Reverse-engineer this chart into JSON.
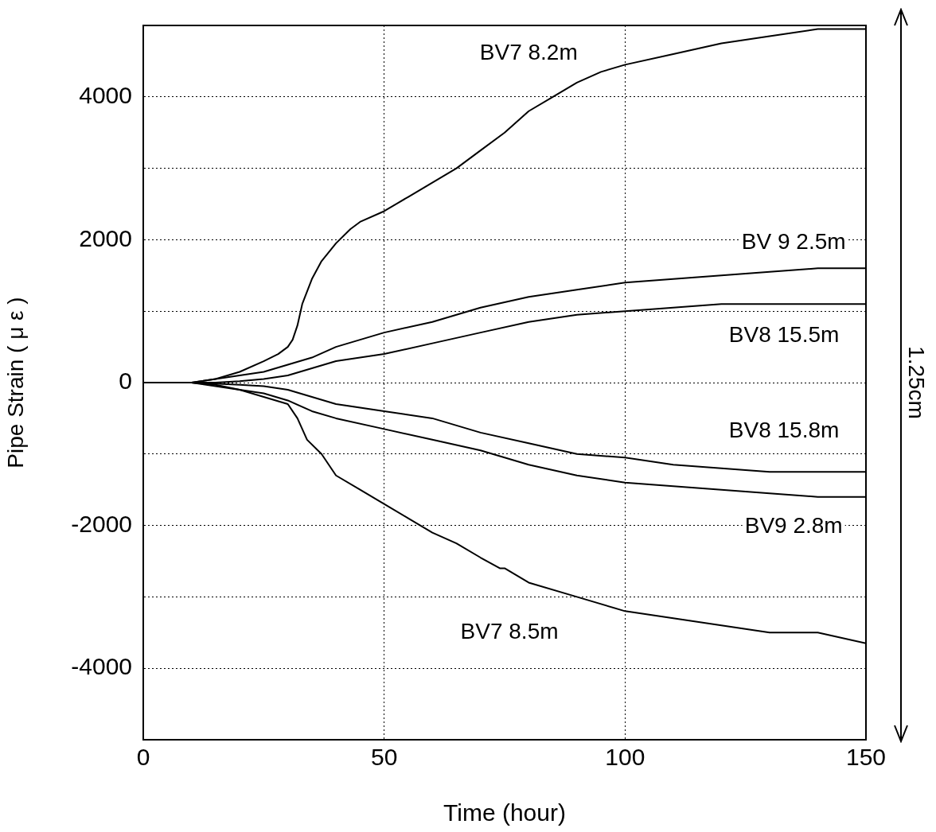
{
  "chart_data": {
    "type": "line",
    "xlabel": "Time (hour)",
    "ylabel": "Pipe Strain ( μ ε )",
    "xlim": [
      0,
      150
    ],
    "xticks": [
      0,
      50,
      100,
      150
    ],
    "ylim": [
      -5000,
      5000
    ],
    "yticks": [
      {
        "value": -5000,
        "label": null
      },
      {
        "value": -4000,
        "label": "-4000"
      },
      {
        "value": -3000,
        "label": null
      },
      {
        "value": -2000,
        "label": "-2000"
      },
      {
        "value": -1000,
        "label": null
      },
      0,
      {
        "value": 1000,
        "label": null
      },
      {
        "value": 2000,
        "label": "2000"
      },
      {
        "value": 3000,
        "label": null
      },
      {
        "value": 4000,
        "label": "4000"
      },
      {
        "value": 5000,
        "label": null
      }
    ],
    "grid": true,
    "legend": false,
    "marker": "none",
    "line_style": "solid",
    "annotations": [
      "1.25cm"
    ],
    "series": [
      {
        "name": "BV7 8.2m",
        "color": "#000000",
        "x": [
          0,
          10,
          15,
          20,
          25,
          28,
          30,
          31,
          32,
          33,
          35,
          37,
          40,
          43,
          45,
          50,
          55,
          60,
          65,
          70,
          75,
          80,
          85,
          90,
          95,
          100,
          110,
          120,
          130,
          140,
          150
        ],
        "values": [
          0,
          0,
          50,
          150,
          300,
          400,
          500,
          600,
          800,
          1100,
          1450,
          1700,
          1950,
          2150,
          2250,
          2400,
          2600,
          2800,
          3000,
          3250,
          3500,
          3800,
          4000,
          4200,
          4350,
          4450,
          4600,
          4750,
          4850,
          4950,
          4950
        ]
      },
      {
        "name": "BV 9 2.5m",
        "color": "#000000",
        "x": [
          0,
          10,
          15,
          20,
          25,
          30,
          35,
          40,
          45,
          50,
          60,
          65,
          70,
          80,
          90,
          100,
          110,
          120,
          130,
          140,
          150
        ],
        "values": [
          0,
          0,
          50,
          100,
          150,
          250,
          350,
          500,
          600,
          700,
          850,
          950,
          1050,
          1200,
          1300,
          1400,
          1450,
          1500,
          1550,
          1600,
          1600
        ]
      },
      {
        "name": "BV8 15.5m",
        "color": "#000000",
        "x": [
          0,
          15,
          20,
          25,
          30,
          35,
          40,
          50,
          60,
          70,
          80,
          90,
          100,
          110,
          120,
          130,
          150
        ],
        "values": [
          0,
          0,
          20,
          50,
          100,
          200,
          300,
          400,
          550,
          700,
          850,
          950,
          1000,
          1050,
          1100,
          1100,
          1100
        ]
      },
      {
        "name": "BV8 15.8m",
        "color": "#000000",
        "x": [
          0,
          10,
          20,
          25,
          30,
          35,
          40,
          50,
          60,
          70,
          80,
          90,
          100,
          110,
          120,
          130,
          150
        ],
        "values": [
          0,
          0,
          -30,
          -50,
          -100,
          -200,
          -300,
          -400,
          -500,
          -700,
          -850,
          -1000,
          -1050,
          -1150,
          -1200,
          -1250,
          -1250
        ]
      },
      {
        "name": "BV9 2.8m",
        "color": "#000000",
        "x": [
          0,
          10,
          15,
          20,
          25,
          30,
          35,
          40,
          50,
          60,
          70,
          80,
          90,
          100,
          110,
          120,
          130,
          140,
          150
        ],
        "values": [
          0,
          0,
          -30,
          -100,
          -150,
          -250,
          -400,
          -500,
          -650,
          -800,
          -950,
          -1150,
          -1300,
          -1400,
          -1450,
          -1500,
          -1550,
          -1600,
          -1600
        ]
      },
      {
        "name": "BV7 8.5m",
        "color": "#000000",
        "x": [
          0,
          10,
          15,
          20,
          25,
          30,
          32,
          34,
          37,
          40,
          45,
          50,
          55,
          60,
          65,
          70,
          74,
          75,
          80,
          90,
          100,
          110,
          120,
          130,
          140,
          150
        ],
        "values": [
          0,
          0,
          -50,
          -100,
          -200,
          -300,
          -500,
          -800,
          -1000,
          -1300,
          -1500,
          -1700,
          -1900,
          -2100,
          -2250,
          -2450,
          -2600,
          -2600,
          -2800,
          -3000,
          -3200,
          -3300,
          -3400,
          -3500,
          -3500,
          -3650
        ]
      }
    ]
  }
}
